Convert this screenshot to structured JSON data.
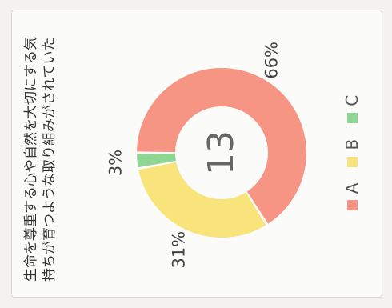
{
  "chart_data": {
    "type": "pie",
    "title": "生命を尊重する心や自然を大切にする気持ちが育つような取り組みがされていた",
    "center_label": "13",
    "categories": [
      "A",
      "B",
      "C"
    ],
    "values": [
      66,
      31,
      3
    ],
    "value_labels": [
      "66%",
      "31%",
      "3%"
    ],
    "colors": [
      "#f69584",
      "#f9e47c",
      "#8fd694"
    ],
    "legend_placement": "bottom"
  }
}
